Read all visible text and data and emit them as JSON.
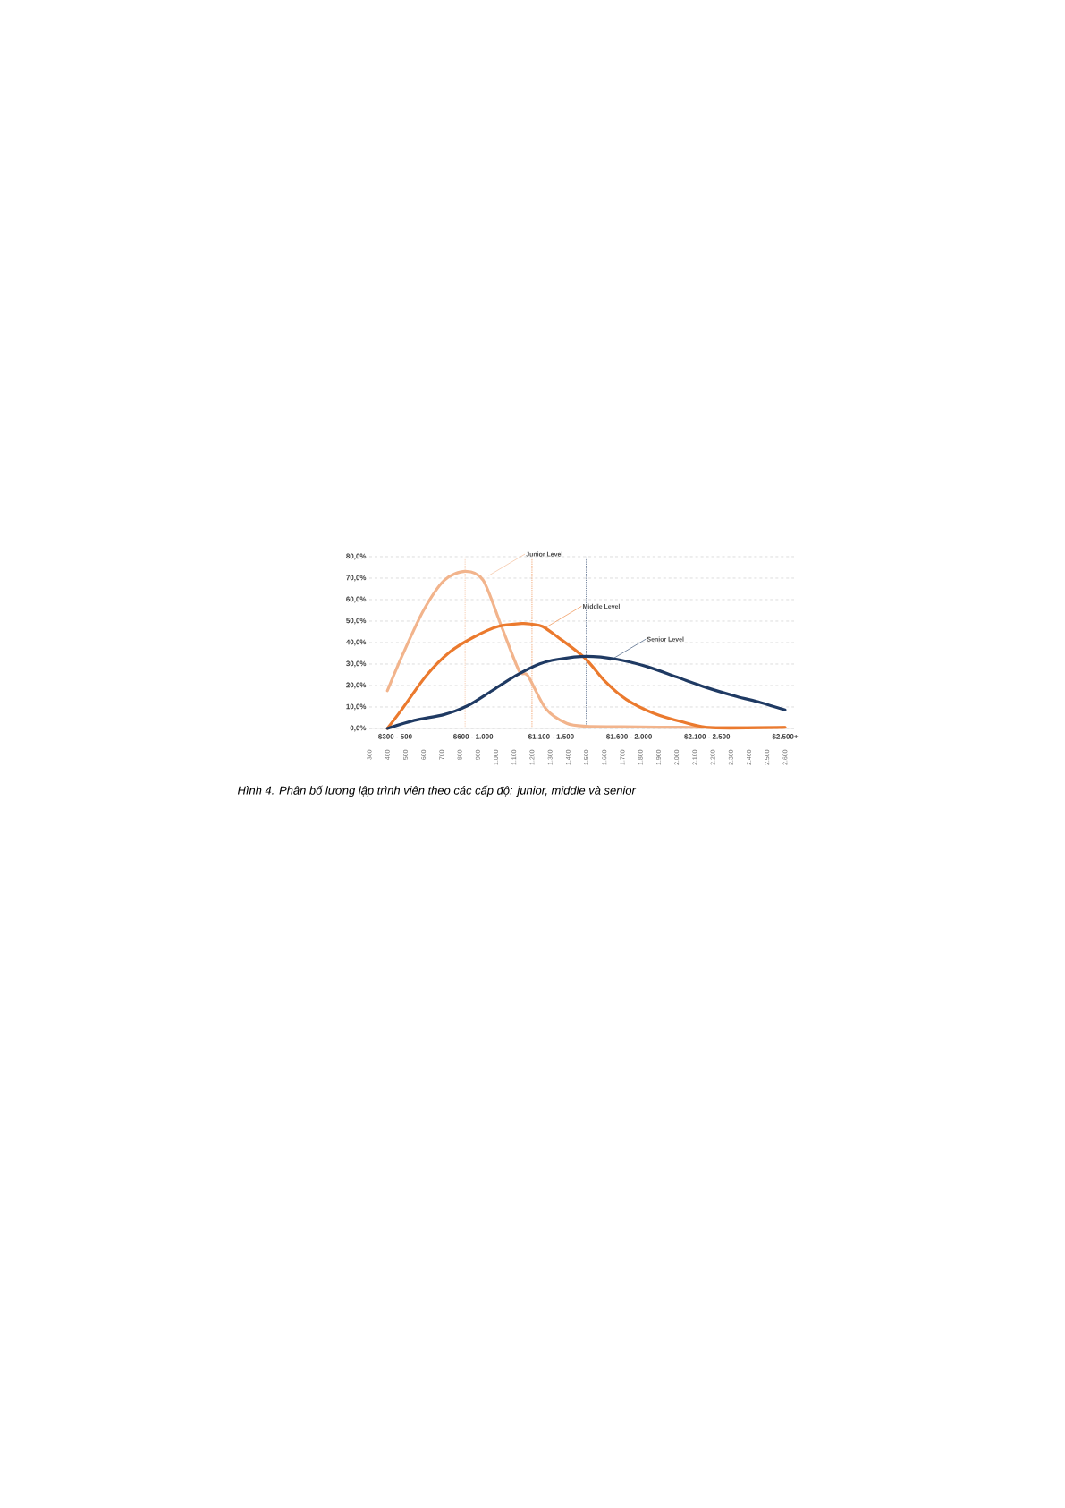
{
  "chart_data": {
    "type": "line",
    "x": [
      400,
      484,
      600,
      715,
      831,
      930,
      1029,
      1128,
      1177,
      1276,
      1392,
      1500,
      1700,
      1900,
      2100,
      2300,
      2600
    ],
    "series": [
      {
        "name": "Junior Level",
        "color": "#f2b48c",
        "values": [
          17.6,
          34.3,
          55,
          69,
          73.2,
          69,
          48,
          27,
          24.6,
          9.3,
          2.4,
          1,
          0.8,
          0.6,
          0.5,
          0.5,
          0.5
        ]
      },
      {
        "name": "Middle Level",
        "color": "#eb7a2e",
        "x": [
          400,
          484,
          615,
          747,
          879,
          1012,
          1144,
          1201,
          1259,
          1342,
          1491,
          1606,
          1722,
          1870,
          2035,
          2200,
          2600
        ],
        "values": [
          0,
          9.3,
          24.6,
          35.7,
          42.6,
          47.5,
          48.9,
          48.5,
          47.5,
          42.6,
          32.9,
          21.8,
          13.5,
          7.2,
          3.0,
          0.3,
          0.5
        ]
      },
      {
        "name": "Senior Level",
        "color": "#1f3a63",
        "x": [
          400,
          550,
          715,
          847,
          979,
          1111,
          1243,
          1342,
          1500,
          1672,
          1837,
          2002,
          2167,
          2332,
          2464,
          2600
        ],
        "values": [
          0,
          3.8,
          6.5,
          10.7,
          17.6,
          24.6,
          30.1,
          32.2,
          33.6,
          32.2,
          28.8,
          23.9,
          19,
          14.9,
          12.1,
          8.6
        ]
      }
    ],
    "xlim": [
      300,
      2650
    ],
    "xticks": [
      300,
      400,
      500,
      600,
      700,
      800,
      900,
      {
        "value": 1000,
        "label": "1.000"
      },
      {
        "value": 1100,
        "label": "1.100"
      },
      {
        "value": 1200,
        "label": "1.200"
      },
      {
        "value": 1300,
        "label": "1.300"
      },
      {
        "value": 1400,
        "label": "1.400"
      },
      {
        "value": 1500,
        "label": "1.500"
      },
      {
        "value": 1600,
        "label": "1.600"
      },
      {
        "value": 1700,
        "label": "1.700"
      },
      {
        "value": 1800,
        "label": "1.800"
      },
      {
        "value": 1900,
        "label": "1.900"
      },
      {
        "value": 2000,
        "label": "2.000"
      },
      {
        "value": 2100,
        "label": "2.100"
      },
      {
        "value": 2200,
        "label": "2.200"
      },
      {
        "value": 2300,
        "label": "2.300"
      },
      {
        "value": 2400,
        "label": "2.400"
      },
      {
        "value": 2500,
        "label": "2.500"
      },
      {
        "value": 2600,
        "label": "2.600"
      }
    ],
    "ylim": [
      0,
      80
    ],
    "yticks": [
      {
        "value": 0,
        "label": "0,0%"
      },
      {
        "value": 10,
        "label": "10,0%"
      },
      {
        "value": 20,
        "label": "20,0%"
      },
      {
        "value": 30,
        "label": "30,0%"
      },
      {
        "value": 40,
        "label": "40,0%"
      },
      {
        "value": 50,
        "label": "50,0%"
      },
      {
        "value": 60,
        "label": "60,0%"
      },
      {
        "value": 70,
        "label": "70,0%"
      },
      {
        "value": 80,
        "label": "80,0%"
      }
    ],
    "ref_lines": [
      {
        "axis": "x",
        "value": 830,
        "color": "#f2b48c",
        "line_style": "dotted"
      },
      {
        "axis": "x",
        "value": 1200,
        "color": "#eb7a2e",
        "line_style": "dotted"
      },
      {
        "axis": "x",
        "value": 1500,
        "color": "#1f3a63",
        "line_style": "dotted"
      }
    ],
    "grid": "y",
    "marker": "none",
    "line_style": "solid",
    "annotations": [
      "Hình 4. Phân bố lương lập trình viên theo các cấp độ: junior, middle và senior",
      "$300 - 500",
      "$600 - 1.000",
      "$1.100 - 1.500",
      "$1.600 - 2.000",
      "$2.100 - 2.500",
      "$2.500+"
    ]
  }
}
